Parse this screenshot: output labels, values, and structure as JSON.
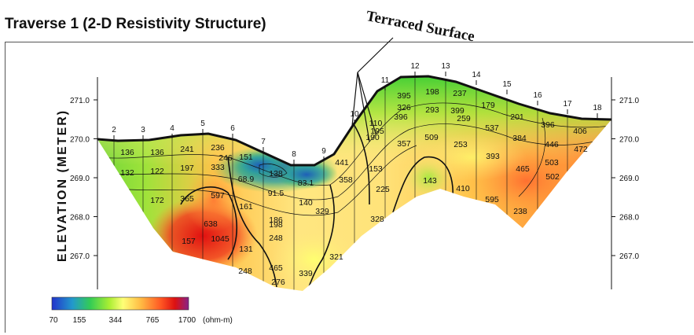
{
  "title": "Traverse 1 (2-D Resistivity Structure)",
  "annotation": "Terraced Surface",
  "chart_data": {
    "type": "heatmap",
    "ylabel": "ELEVATION (METER)",
    "y_ticks": [
      "271.0",
      "270.0",
      "269.0",
      "268.0",
      "267.0"
    ],
    "y_tick_values": [
      271.0,
      270.0,
      269.0,
      268.0,
      267.0
    ],
    "ylim": [
      266.0,
      271.5
    ],
    "stations": [
      "2",
      "3",
      "4",
      "5",
      "6",
      "7",
      "8",
      "9",
      "10",
      "11",
      "12",
      "13",
      "14",
      "15",
      "16",
      "17",
      "18"
    ],
    "contour_labels": [
      "136",
      "136",
      "241",
      "236",
      "151",
      "138",
      "83.1",
      "132",
      "122",
      "197",
      "333",
      "246",
      "68.9",
      "91.5",
      "140",
      "172",
      "365",
      "597",
      "161",
      "186",
      "198",
      "248",
      "157",
      "638",
      "1045",
      "131",
      "248",
      "465",
      "276",
      "339",
      "321",
      "441",
      "110",
      "190",
      "195",
      "395",
      "326",
      "198",
      "293",
      "396",
      "237",
      "179",
      "201",
      "396",
      "399",
      "259",
      "537",
      "357",
      "509",
      "253",
      "384",
      "446",
      "472",
      "406",
      "393",
      "465",
      "503",
      "502",
      "153",
      "358",
      "329",
      "225",
      "143",
      "410",
      "595",
      "238",
      "328"
    ],
    "colorbar": {
      "ticks": [
        "70",
        "155",
        "344",
        "765",
        "1700"
      ],
      "unit": "(ohm-m)"
    }
  }
}
